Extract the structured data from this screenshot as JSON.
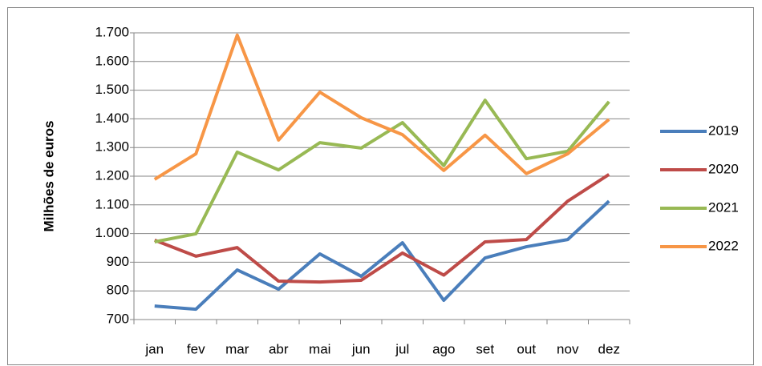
{
  "chart_data": {
    "type": "line",
    "y_label": "Milhões de euros",
    "categories": [
      "jan",
      "fev",
      "mar",
      "abr",
      "mai",
      "jun",
      "jul",
      "ago",
      "set",
      "out",
      "nov",
      "dez"
    ],
    "series": [
      {
        "name": "2019",
        "color": "#4a7ebb",
        "values": [
          747,
          736,
          873,
          806,
          929,
          851,
          968,
          767,
          915,
          954,
          979,
          1113
        ]
      },
      {
        "name": "2020",
        "color": "#be4b48",
        "values": [
          977,
          921,
          951,
          834,
          831,
          837,
          932,
          855,
          971,
          979,
          1113,
          1206
        ]
      },
      {
        "name": "2021",
        "color": "#98b954",
        "values": [
          971,
          999,
          1284,
          1222,
          1317,
          1298,
          1387,
          1237,
          1465,
          1261,
          1287,
          1460
        ]
      },
      {
        "name": "2022",
        "color": "#f79646",
        "values": [
          1189,
          1278,
          1692,
          1326,
          1493,
          1404,
          1345,
          1220,
          1343,
          1209,
          1278,
          1398
        ]
      }
    ],
    "ylim": [
      700,
      1700
    ],
    "yticks": [
      700,
      800,
      900,
      {
        "value": 1000,
        "label": "1.000"
      },
      {
        "value": 1100,
        "label": "1.100"
      },
      {
        "value": 1200,
        "label": "1.200"
      },
      {
        "value": 1300,
        "label": "1.300"
      },
      {
        "value": 1400,
        "label": "1.400"
      },
      {
        "value": 1500,
        "label": "1.500"
      },
      {
        "value": 1600,
        "label": "1.600"
      },
      {
        "value": 1700,
        "label": "1.700"
      }
    ],
    "grid": true,
    "legend": "right"
  }
}
